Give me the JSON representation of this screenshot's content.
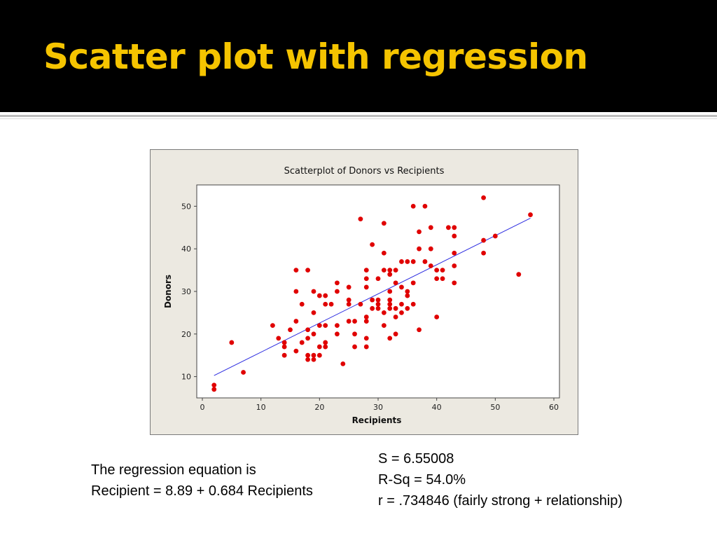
{
  "slide": {
    "title": "Scatter plot with regression"
  },
  "equation_text": {
    "line1": "The regression equation is",
    "line2": "Recipient = 8.89 + 0.684 Recipients"
  },
  "stats_text": {
    "s": "S = 6.55008",
    "rsq": "R-Sq = 54.0%",
    "r": "r = .734846 (fairly strong + relationship)"
  },
  "chart_data": {
    "type": "scatter",
    "title": "Scatterplot of Donors vs Recipients",
    "xlabel": "Recipients",
    "ylabel": "Donors",
    "xlim": [
      0,
      60
    ],
    "ylim": [
      5,
      55
    ],
    "xticks": [
      0,
      10,
      20,
      30,
      40,
      50,
      60
    ],
    "yticks": [
      10,
      20,
      30,
      40,
      50
    ],
    "grid": false,
    "point_color": "#e00000",
    "line_color": "#2a2ae0",
    "regression": {
      "intercept": 8.89,
      "slope": 0.684,
      "x_range": [
        2,
        56
      ]
    },
    "points": [
      [
        2,
        8
      ],
      [
        2,
        7
      ],
      [
        5,
        18
      ],
      [
        7,
        11
      ],
      [
        12,
        22
      ],
      [
        13,
        19
      ],
      [
        14,
        18
      ],
      [
        14,
        17
      ],
      [
        14,
        15
      ],
      [
        15,
        21
      ],
      [
        16,
        35
      ],
      [
        16,
        30
      ],
      [
        16,
        23
      ],
      [
        16,
        16
      ],
      [
        17,
        27
      ],
      [
        17,
        18
      ],
      [
        18,
        35
      ],
      [
        18,
        21
      ],
      [
        18,
        19
      ],
      [
        18,
        15
      ],
      [
        18,
        14
      ],
      [
        19,
        30
      ],
      [
        19,
        25
      ],
      [
        19,
        20
      ],
      [
        19,
        15
      ],
      [
        19,
        14
      ],
      [
        20,
        29
      ],
      [
        20,
        22
      ],
      [
        20,
        17
      ],
      [
        20,
        15
      ],
      [
        21,
        29
      ],
      [
        21,
        27
      ],
      [
        21,
        22
      ],
      [
        21,
        18
      ],
      [
        21,
        17
      ],
      [
        22,
        27
      ],
      [
        23,
        32
      ],
      [
        23,
        30
      ],
      [
        23,
        22
      ],
      [
        23,
        20
      ],
      [
        24,
        13
      ],
      [
        25,
        31
      ],
      [
        25,
        28
      ],
      [
        25,
        27
      ],
      [
        25,
        23
      ],
      [
        26,
        23
      ],
      [
        26,
        20
      ],
      [
        26,
        17
      ],
      [
        27,
        47
      ],
      [
        27,
        27
      ],
      [
        28,
        35
      ],
      [
        28,
        33
      ],
      [
        28,
        31
      ],
      [
        28,
        24
      ],
      [
        28,
        23
      ],
      [
        28,
        19
      ],
      [
        28,
        17
      ],
      [
        29,
        41
      ],
      [
        29,
        28
      ],
      [
        29,
        26
      ],
      [
        30,
        28
      ],
      [
        30,
        27
      ],
      [
        30,
        26
      ],
      [
        30,
        33
      ],
      [
        31,
        46
      ],
      [
        31,
        39
      ],
      [
        31,
        35
      ],
      [
        31,
        25
      ],
      [
        31,
        22
      ],
      [
        32,
        35
      ],
      [
        32,
        34
      ],
      [
        32,
        30
      ],
      [
        32,
        28
      ],
      [
        32,
        27
      ],
      [
        32,
        26
      ],
      [
        32,
        19
      ],
      [
        33,
        35
      ],
      [
        33,
        32
      ],
      [
        33,
        26
      ],
      [
        33,
        24
      ],
      [
        33,
        20
      ],
      [
        34,
        37
      ],
      [
        34,
        31
      ],
      [
        34,
        27
      ],
      [
        34,
        25
      ],
      [
        35,
        37
      ],
      [
        35,
        30
      ],
      [
        35,
        29
      ],
      [
        35,
        26
      ],
      [
        36,
        50
      ],
      [
        36,
        37
      ],
      [
        36,
        32
      ],
      [
        36,
        27
      ],
      [
        37,
        44
      ],
      [
        37,
        40
      ],
      [
        37,
        21
      ],
      [
        38,
        50
      ],
      [
        38,
        37
      ],
      [
        39,
        45
      ],
      [
        39,
        40
      ],
      [
        39,
        36
      ],
      [
        40,
        35
      ],
      [
        40,
        33
      ],
      [
        40,
        24
      ],
      [
        41,
        35
      ],
      [
        41,
        33
      ],
      [
        42,
        45
      ],
      [
        43,
        45
      ],
      [
        43,
        43
      ],
      [
        43,
        39
      ],
      [
        43,
        36
      ],
      [
        43,
        32
      ],
      [
        48,
        52
      ],
      [
        48,
        42
      ],
      [
        48,
        39
      ],
      [
        50,
        43
      ],
      [
        54,
        34
      ],
      [
        56,
        48
      ]
    ]
  }
}
